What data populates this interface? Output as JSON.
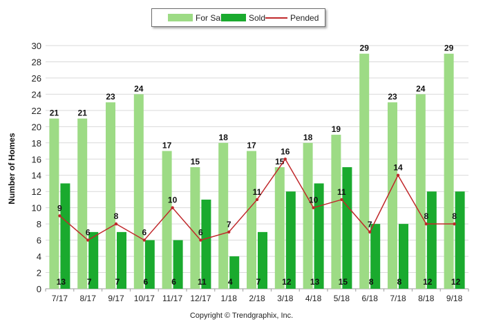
{
  "legend": {
    "for_sale": "For Sale",
    "sold": "Sold",
    "pended": "Pended"
  },
  "copyright": "Copyright © Trendgraphix, Inc.",
  "colors": {
    "for_sale": "#9ddb85",
    "sold": "#1aaa2e",
    "pended": "#c0282b",
    "grid": "#d9d9d9"
  },
  "chart_data": {
    "type": "bar",
    "categories": [
      "7/17",
      "8/17",
      "9/17",
      "10/17",
      "11/17",
      "12/17",
      "1/18",
      "2/18",
      "3/18",
      "4/18",
      "5/18",
      "6/18",
      "7/18",
      "8/18",
      "9/18"
    ],
    "series": [
      {
        "name": "For Sale",
        "type": "bar",
        "values": [
          21,
          21,
          23,
          24,
          17,
          15,
          18,
          17,
          15,
          18,
          19,
          29,
          23,
          24,
          29
        ]
      },
      {
        "name": "Sold",
        "type": "bar",
        "values": [
          13,
          7,
          7,
          6,
          6,
          11,
          4,
          7,
          12,
          13,
          15,
          8,
          8,
          12,
          12
        ]
      },
      {
        "name": "Pended",
        "type": "line",
        "values": [
          9,
          6,
          8,
          6,
          10,
          6,
          7,
          11,
          16,
          10,
          11,
          7,
          14,
          8,
          8
        ]
      }
    ],
    "xlabel": "",
    "ylabel": "Number of Homes",
    "ylim": [
      0,
      30
    ],
    "yticks": [
      0,
      2,
      4,
      6,
      8,
      10,
      12,
      14,
      16,
      18,
      20,
      22,
      24,
      26,
      28,
      30
    ],
    "grid": true,
    "legend_position": "top-center"
  }
}
